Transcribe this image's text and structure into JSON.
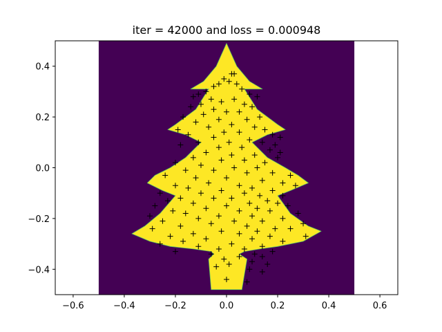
{
  "chart_data": {
    "type": "heatmap",
    "title": "iter = 42000 and loss = 0.000948",
    "xlabel": "",
    "ylabel": "",
    "xlim": [
      -0.67,
      0.67
    ],
    "ylim": [
      -0.5,
      0.5
    ],
    "x_ticks": [
      -0.6,
      -0.4,
      -0.2,
      0.0,
      0.2,
      0.4,
      0.6
    ],
    "x_tick_labels": [
      "−0.6",
      "−0.4",
      "−0.2",
      "0.0",
      "0.2",
      "0.4",
      "0.6"
    ],
    "y_ticks": [
      -0.4,
      -0.2,
      0.0,
      0.2,
      0.4
    ],
    "y_tick_labels": [
      "−0.4",
      "−0.2",
      "0.0",
      "0.2",
      "0.4"
    ],
    "grid": false,
    "field_extent": {
      "x": [
        -0.5,
        0.5
      ],
      "y": [
        -0.5,
        0.5
      ]
    },
    "colors": {
      "outside": "#440154",
      "inside": "#fde725",
      "points": "#000000"
    },
    "tree_outline": [
      [
        0,
        0.49
      ],
      [
        0.04,
        0.4
      ],
      [
        0.09,
        0.34
      ],
      [
        0.14,
        0.31
      ],
      [
        0.07,
        0.31
      ],
      [
        0.12,
        0.23
      ],
      [
        0.2,
        0.17
      ],
      [
        0.23,
        0.15
      ],
      [
        0.16,
        0.13
      ],
      [
        0.1,
        0.1
      ],
      [
        0.16,
        0.04
      ],
      [
        0.23,
        0.0
      ],
      [
        0.28,
        -0.03
      ],
      [
        0.32,
        -0.06
      ],
      [
        0.25,
        -0.09
      ],
      [
        0.2,
        -0.11
      ],
      [
        0.25,
        -0.18
      ],
      [
        0.32,
        -0.23
      ],
      [
        0.37,
        -0.25
      ],
      [
        0.3,
        -0.29
      ],
      [
        0.2,
        -0.31
      ],
      [
        0.13,
        -0.32
      ],
      [
        0.07,
        -0.33
      ],
      [
        0.05,
        -0.34
      ],
      [
        0.08,
        -0.36
      ],
      [
        0.06,
        -0.48
      ],
      [
        -0.06,
        -0.48
      ],
      [
        -0.07,
        -0.36
      ],
      [
        -0.05,
        -0.34
      ],
      [
        -0.06,
        -0.33
      ],
      [
        -0.13,
        -0.32
      ],
      [
        -0.22,
        -0.31
      ],
      [
        -0.3,
        -0.29
      ],
      [
        -0.37,
        -0.26
      ],
      [
        -0.32,
        -0.23
      ],
      [
        -0.26,
        -0.18
      ],
      [
        -0.2,
        -0.11
      ],
      [
        -0.25,
        -0.09
      ],
      [
        -0.31,
        -0.06
      ],
      [
        -0.28,
        -0.03
      ],
      [
        -0.22,
        0.0
      ],
      [
        -0.16,
        0.04
      ],
      [
        -0.1,
        0.1
      ],
      [
        -0.16,
        0.13
      ],
      [
        -0.23,
        0.15
      ],
      [
        -0.2,
        0.17
      ],
      [
        -0.12,
        0.23
      ],
      [
        -0.07,
        0.31
      ],
      [
        -0.14,
        0.31
      ],
      [
        -0.09,
        0.34
      ],
      [
        -0.04,
        0.4
      ]
    ],
    "points": [
      [
        0.02,
        0.37
      ],
      [
        0.03,
        0.37
      ],
      [
        -0.01,
        0.35
      ],
      [
        0.01,
        0.34
      ],
      [
        -0.03,
        0.33
      ],
      [
        0.04,
        0.33
      ],
      [
        -0.05,
        0.32
      ],
      [
        0.06,
        0.31
      ],
      [
        -0.08,
        0.3
      ],
      [
        -0.11,
        0.29
      ],
      [
        0.09,
        0.29
      ],
      [
        -0.13,
        0.28
      ],
      [
        0.12,
        0.28
      ],
      [
        -0.06,
        0.27
      ],
      [
        0.03,
        0.27
      ],
      [
        -0.02,
        0.26
      ],
      [
        0.07,
        0.25
      ],
      [
        -0.1,
        0.25
      ],
      [
        -0.14,
        0.24
      ],
      [
        0.1,
        0.24
      ],
      [
        -0.05,
        0.23
      ],
      [
        0.0,
        0.22
      ],
      [
        0.05,
        0.22
      ],
      [
        -0.09,
        0.21
      ],
      [
        -0.17,
        0.2
      ],
      [
        0.13,
        0.2
      ],
      [
        -0.03,
        0.19
      ],
      [
        0.08,
        0.19
      ],
      [
        -0.12,
        0.18
      ],
      [
        0.02,
        0.17
      ],
      [
        -0.07,
        0.16
      ],
      [
        0.11,
        0.16
      ],
      [
        0.15,
        0.15
      ],
      [
        -0.19,
        0.15
      ],
      [
        -0.01,
        0.14
      ],
      [
        0.05,
        0.14
      ],
      [
        -0.15,
        0.13
      ],
      [
        0.18,
        0.13
      ],
      [
        0.21,
        0.12
      ],
      [
        -0.05,
        0.12
      ],
      [
        0.09,
        0.11
      ],
      [
        -0.11,
        0.1
      ],
      [
        0.01,
        0.1
      ],
      [
        0.14,
        0.1
      ],
      [
        0.19,
        0.09
      ],
      [
        -0.18,
        0.09
      ],
      [
        -0.03,
        0.08
      ],
      [
        0.06,
        0.08
      ],
      [
        0.17,
        0.07
      ],
      [
        0.21,
        0.06
      ],
      [
        -0.08,
        0.06
      ],
      [
        0.02,
        0.05
      ],
      [
        0.11,
        0.05
      ],
      [
        0.2,
        0.04
      ],
      [
        -0.13,
        0.04
      ],
      [
        -0.02,
        0.03
      ],
      [
        0.07,
        0.03
      ],
      [
        0.15,
        0.02
      ],
      [
        -0.2,
        0.02
      ],
      [
        -0.1,
        0.01
      ],
      [
        0.03,
        0.0
      ],
      [
        0.12,
        0.0
      ],
      [
        -0.16,
        -0.01
      ],
      [
        -0.05,
        -0.01
      ],
      [
        0.08,
        -0.02
      ],
      [
        0.18,
        -0.02
      ],
      [
        0.25,
        -0.03
      ],
      [
        -0.24,
        -0.03
      ],
      [
        0.0,
        -0.04
      ],
      [
        -0.12,
        -0.04
      ],
      [
        0.14,
        -0.05
      ],
      [
        0.22,
        -0.06
      ],
      [
        -0.07,
        -0.06
      ],
      [
        0.05,
        -0.07
      ],
      [
        -0.2,
        -0.07
      ],
      [
        0.27,
        -0.07
      ],
      [
        0.1,
        -0.08
      ],
      [
        -0.15,
        -0.08
      ],
      [
        -0.02,
        -0.09
      ],
      [
        0.18,
        -0.09
      ],
      [
        -0.26,
        -0.1
      ],
      [
        0.07,
        -0.1
      ],
      [
        -0.1,
        -0.1
      ],
      [
        0.13,
        -0.11
      ],
      [
        0.22,
        -0.11
      ],
      [
        -0.05,
        -0.12
      ],
      [
        0.02,
        -0.12
      ],
      [
        -0.18,
        -0.12
      ],
      [
        0.16,
        -0.13
      ],
      [
        -0.23,
        -0.13
      ],
      [
        0.09,
        -0.14
      ],
      [
        -0.13,
        -0.14
      ],
      [
        0.2,
        -0.14
      ],
      [
        0.0,
        -0.15
      ],
      [
        -0.28,
        -0.15
      ],
      [
        0.24,
        -0.15
      ],
      [
        -0.08,
        -0.16
      ],
      [
        0.12,
        -0.16
      ],
      [
        0.05,
        -0.17
      ],
      [
        -0.21,
        -0.17
      ],
      [
        0.17,
        -0.17
      ],
      [
        0.28,
        -0.18
      ],
      [
        -0.16,
        -0.18
      ],
      [
        -0.03,
        -0.19
      ],
      [
        0.1,
        -0.19
      ],
      [
        -0.3,
        -0.19
      ],
      [
        0.22,
        -0.2
      ],
      [
        -0.11,
        -0.2
      ],
      [
        0.03,
        -0.21
      ],
      [
        -0.25,
        -0.21
      ],
      [
        0.14,
        -0.21
      ],
      [
        0.3,
        -0.22
      ],
      [
        -0.06,
        -0.22
      ],
      [
        0.08,
        -0.23
      ],
      [
        -0.18,
        -0.23
      ],
      [
        0.19,
        -0.24
      ],
      [
        0.25,
        -0.24
      ],
      [
        -0.29,
        -0.24
      ],
      [
        -0.02,
        -0.25
      ],
      [
        0.12,
        -0.25
      ],
      [
        -0.13,
        -0.26
      ],
      [
        0.05,
        -0.26
      ],
      [
        -0.22,
        -0.27
      ],
      [
        0.17,
        -0.27
      ],
      [
        0.31,
        -0.27
      ],
      [
        -0.08,
        -0.28
      ],
      [
        0.1,
        -0.28
      ],
      [
        0.22,
        -0.29
      ],
      [
        -0.17,
        -0.29
      ],
      [
        0.02,
        -0.3
      ],
      [
        -0.26,
        -0.3
      ],
      [
        0.14,
        -0.31
      ],
      [
        -0.11,
        -0.31
      ],
      [
        0.07,
        -0.32
      ],
      [
        -0.03,
        -0.32
      ],
      [
        0.18,
        -0.33
      ],
      [
        -0.2,
        -0.33
      ],
      [
        0.11,
        -0.34
      ],
      [
        -0.06,
        -0.34
      ],
      [
        0.05,
        -0.35
      ],
      [
        0.14,
        -0.35
      ],
      [
        -0.01,
        -0.36
      ],
      [
        0.1,
        -0.37
      ],
      [
        0.01,
        -0.38
      ],
      [
        0.16,
        -0.38
      ],
      [
        -0.04,
        -0.39
      ],
      [
        0.09,
        -0.4
      ],
      [
        0.14,
        -0.41
      ],
      [
        0.0,
        -0.44
      ],
      [
        0.08,
        -0.45
      ]
    ]
  }
}
